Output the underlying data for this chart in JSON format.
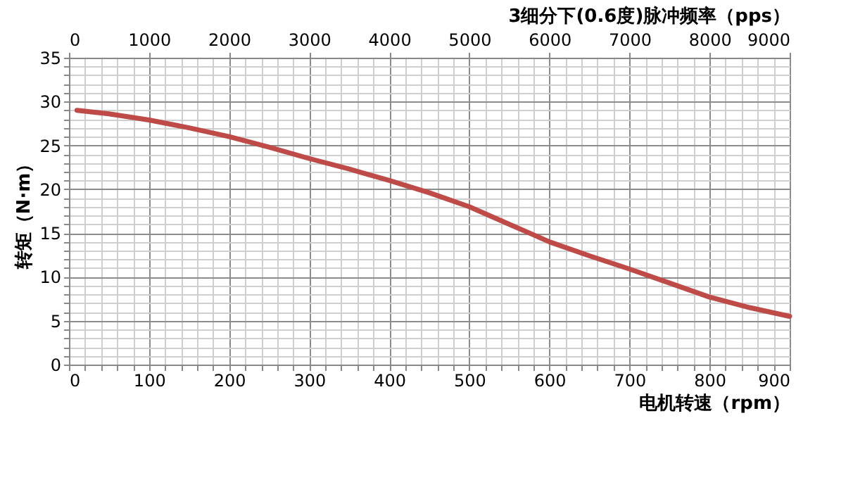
{
  "chart_data": {
    "type": "line",
    "xlabel": "电机转速（rpm）",
    "ylabel": "转矩（N·m）",
    "x2label": "3细分下(0.6度)脉冲频率（pps）",
    "x": [
      10,
      50,
      100,
      150,
      200,
      250,
      300,
      350,
      400,
      450,
      500,
      550,
      600,
      650,
      700,
      750,
      800,
      850,
      900
    ],
    "series": [
      {
        "color": "#be4b48",
        "values": [
          29,
          28.6,
          27.9,
          27,
          26,
          24.8,
          23.5,
          22.3,
          21,
          19.6,
          18,
          16,
          14,
          12.4,
          10.9,
          9.3,
          7.7,
          6.5,
          5.5
        ]
      }
    ],
    "xlim": [
      0,
      900
    ],
    "xticks": [
      0,
      {
        "value": 20,
        "label": null
      },
      {
        "value": 40,
        "label": null
      },
      {
        "value": 60,
        "label": null
      },
      {
        "value": 80,
        "label": null
      },
      100,
      {
        "value": 120,
        "label": null
      },
      {
        "value": 140,
        "label": null
      },
      {
        "value": 160,
        "label": null
      },
      {
        "value": 180,
        "label": null
      },
      200,
      {
        "value": 220,
        "label": null
      },
      {
        "value": 240,
        "label": null
      },
      {
        "value": 260,
        "label": null
      },
      {
        "value": 280,
        "label": null
      },
      300,
      {
        "value": 320,
        "label": null
      },
      {
        "value": 340,
        "label": null
      },
      {
        "value": 360,
        "label": null
      },
      {
        "value": 380,
        "label": null
      },
      400,
      {
        "value": 420,
        "label": null
      },
      {
        "value": 440,
        "label": null
      },
      {
        "value": 460,
        "label": null
      },
      {
        "value": 480,
        "label": null
      },
      500,
      {
        "value": 520,
        "label": null
      },
      {
        "value": 540,
        "label": null
      },
      {
        "value": 560,
        "label": null
      },
      {
        "value": 580,
        "label": null
      },
      600,
      {
        "value": 620,
        "label": null
      },
      {
        "value": 640,
        "label": null
      },
      {
        "value": 660,
        "label": null
      },
      {
        "value": 680,
        "label": null
      },
      700,
      {
        "value": 720,
        "label": null
      },
      {
        "value": 740,
        "label": null
      },
      {
        "value": 760,
        "label": null
      },
      {
        "value": 780,
        "label": null
      },
      800,
      {
        "value": 820,
        "label": null
      },
      {
        "value": 840,
        "label": null
      },
      {
        "value": 860,
        "label": null
      },
      {
        "value": 880,
        "label": null
      },
      900
    ],
    "ylim": [
      0,
      35
    ],
    "yticks": [
      0,
      {
        "value": 1,
        "label": null
      },
      {
        "value": 2,
        "label": null
      },
      {
        "value": 3,
        "label": null
      },
      {
        "value": 4,
        "label": null
      },
      5,
      {
        "value": 6,
        "label": null
      },
      {
        "value": 7,
        "label": null
      },
      {
        "value": 8,
        "label": null
      },
      {
        "value": 9,
        "label": null
      },
      10,
      {
        "value": 11,
        "label": null
      },
      {
        "value": 12,
        "label": null
      },
      {
        "value": 13,
        "label": null
      },
      {
        "value": 14,
        "label": null
      },
      15,
      {
        "value": 16,
        "label": null
      },
      {
        "value": 17,
        "label": null
      },
      {
        "value": 18,
        "label": null
      },
      {
        "value": 19,
        "label": null
      },
      20,
      {
        "value": 21,
        "label": null
      },
      {
        "value": 22,
        "label": null
      },
      {
        "value": 23,
        "label": null
      },
      {
        "value": 24,
        "label": null
      },
      25,
      {
        "value": 26,
        "label": null
      },
      {
        "value": 27,
        "label": null
      },
      {
        "value": 28,
        "label": null
      },
      {
        "value": 29,
        "label": null
      },
      30,
      {
        "value": 31,
        "label": null
      },
      {
        "value": 32,
        "label": null
      },
      {
        "value": 33,
        "label": null
      },
      {
        "value": 34,
        "label": null
      },
      35
    ],
    "x2lim": [
      0,
      9000
    ],
    "x2ticks": [
      0,
      1000,
      2000,
      3000,
      4000,
      5000,
      6000,
      7000,
      8000,
      9000
    ],
    "grid": true,
    "legend": false,
    "marker": "none",
    "line_style": "solid"
  }
}
